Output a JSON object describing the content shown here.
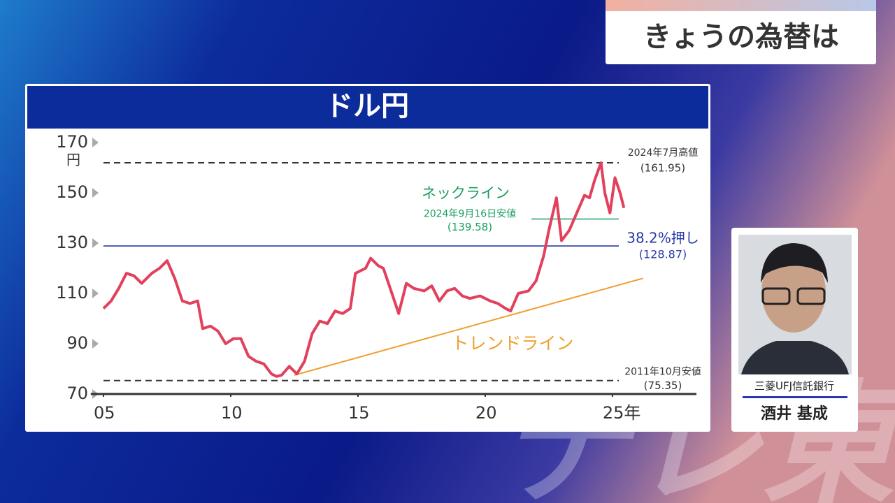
{
  "header": {
    "title": "きょうの為替は"
  },
  "chart_data": {
    "type": "line",
    "title": "ドル円",
    "y_unit": "円",
    "xlim": [
      2004.5,
      2028.3
    ],
    "xticks": [
      {
        "value": 2005,
        "label": "05"
      },
      {
        "value": 2010,
        "label": "10"
      },
      {
        "value": 2015,
        "label": "15"
      },
      {
        "value": 2020,
        "label": "20"
      },
      {
        "value": 2025,
        "label": "25年"
      }
    ],
    "ylim": [
      70,
      174
    ],
    "yticks": [
      70,
      90,
      110,
      130,
      150,
      170
    ],
    "series": [
      {
        "color": "#e2405c",
        "x": [
          2005.0,
          2005.3,
          2005.6,
          2005.9,
          2006.2,
          2006.5,
          2006.9,
          2007.2,
          2007.5,
          2007.8,
          2008.1,
          2008.4,
          2008.7,
          2008.9,
          2009.2,
          2009.5,
          2009.8,
          2010.1,
          2010.4,
          2010.7,
          2011.0,
          2011.3,
          2011.6,
          2011.8,
          2012.0,
          2012.3,
          2012.6,
          2012.9,
          2013.2,
          2013.5,
          2013.8,
          2014.1,
          2014.4,
          2014.7,
          2014.9,
          2015.3,
          2015.5,
          2015.8,
          2016.0,
          2016.3,
          2016.6,
          2016.9,
          2017.2,
          2017.6,
          2017.9,
          2018.2,
          2018.5,
          2018.8,
          2019.1,
          2019.4,
          2019.8,
          2020.2,
          2020.5,
          2020.8,
          2021.0,
          2021.3,
          2021.7,
          2022.0,
          2022.3,
          2022.5,
          2022.8,
          2023.0,
          2023.3,
          2023.6,
          2023.9,
          2024.1,
          2024.3,
          2024.55,
          2024.7,
          2024.9,
          2025.1,
          2025.3,
          2025.45
        ],
        "values": [
          104,
          107,
          112,
          118,
          117,
          114,
          118,
          120,
          123,
          116,
          107,
          106,
          107,
          96,
          97,
          95,
          90,
          92,
          92,
          85,
          83,
          82,
          78,
          77,
          77.5,
          81,
          78,
          83,
          94,
          99,
          98,
          103,
          102,
          104,
          118,
          120,
          124,
          121,
          120,
          111,
          102,
          114,
          112,
          111,
          113,
          107,
          111,
          112,
          109,
          108,
          109,
          107,
          106,
          104,
          103,
          110,
          111,
          115,
          125,
          135,
          148,
          131,
          135,
          142,
          149,
          148,
          155,
          161.95,
          150,
          142,
          156,
          150,
          144
        ]
      }
    ],
    "trendline": {
      "name": "トレンドライン",
      "color": "#f0a030",
      "x": [
        2012.5,
        2026.2
      ],
      "values": [
        77.5,
        116
      ]
    },
    "reference_lines": [
      {
        "label": "2024年7月高値",
        "value": 161.95,
        "value_label": "(161.95)",
        "color": "#333333",
        "style": "dashed"
      },
      {
        "name": "ネックライン",
        "label": "2024年9月16日安値",
        "value": 139.58,
        "value_label": "(139.58)",
        "color": "#1aa060",
        "style": "solid"
      },
      {
        "label": "38.2%押し",
        "value": 128.87,
        "value_label": "(128.87)",
        "color": "#2a3aa8",
        "style": "solid"
      },
      {
        "label": "2011年10月安値",
        "value": 75.35,
        "value_label": "(75.35)",
        "color": "#333333",
        "style": "dashed"
      }
    ]
  },
  "guest": {
    "company": "三菱UFJ信託銀行",
    "name": "酒井 基成"
  },
  "logo": "テレ東"
}
